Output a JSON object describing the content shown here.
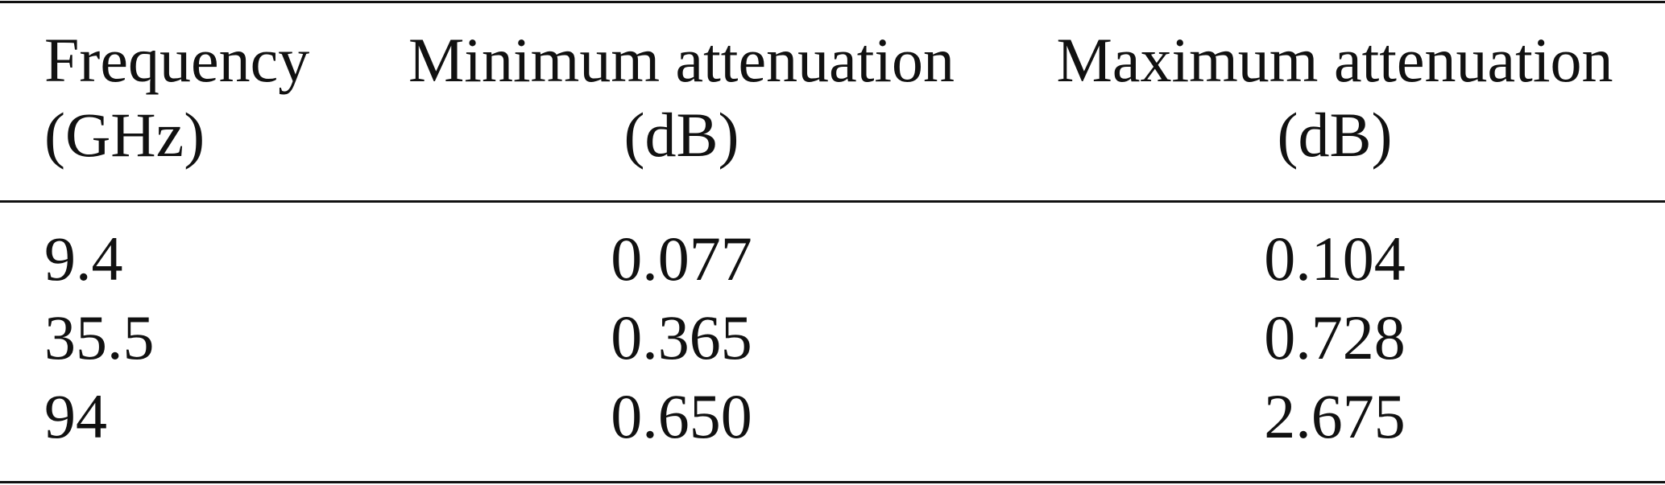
{
  "table": {
    "header": [
      [
        "Frequency",
        "(GHz)"
      ],
      [
        "Minimum attenuation",
        "(dB)"
      ],
      [
        "Maximum attenuation",
        "(dB)"
      ]
    ],
    "rows": [
      [
        "9.4",
        "0.077",
        "0.104"
      ],
      [
        "35.5",
        "0.365",
        "0.728"
      ],
      [
        "94",
        "0.650",
        "2.675"
      ]
    ]
  }
}
